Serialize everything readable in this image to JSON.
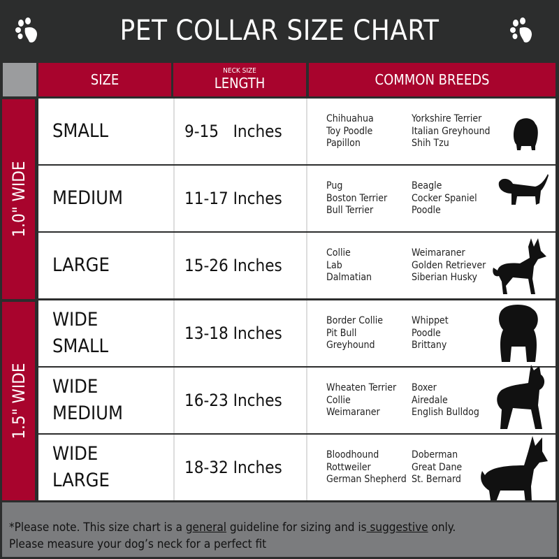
{
  "title": "PET COLLAR SIZE CHART",
  "headers": {
    "size": "SIZE",
    "neck_small": "NECK SIZE",
    "length": "LENGTH",
    "breeds": "COMMON BREEDS"
  },
  "groups": [
    "1.0\" WIDE",
    "1.5\" WIDE"
  ],
  "rows": [
    {
      "size": "SMALL",
      "length": "9-15   Inches",
      "breeds_a": [
        "Chihuahua",
        "Toy Poodle",
        "Papillon"
      ],
      "breeds_b": [
        "Yorkshire Terrier",
        "Italian Greyhound",
        "Shih Tzu"
      ],
      "icon": "small-dog-icon"
    },
    {
      "size": "MEDIUM",
      "length": "11-17 Inches",
      "breeds_a": [
        "Pug",
        "Boston Terrier",
        "Bull Terrier"
      ],
      "breeds_b": [
        "Beagle",
        "Cocker Spaniel",
        "Poodle"
      ],
      "icon": "dachshund-icon"
    },
    {
      "size": "LARGE",
      "length": "15-26 Inches",
      "breeds_a": [
        "Collie",
        "Lab",
        "Dalmatian"
      ],
      "breeds_b": [
        "Weimaraner",
        "Golden Retriever",
        "Siberian Husky"
      ],
      "icon": "shepherd-dog-icon"
    },
    {
      "size": "WIDE SMALL",
      "length": "13-18 Inches",
      "breeds_a": [
        "Border Collie",
        "Pit Bull",
        "Greyhound"
      ],
      "breeds_b": [
        "Whippet",
        "Poodle",
        "Brittany"
      ],
      "icon": "bulldog-icon"
    },
    {
      "size": "WIDE MEDIUM",
      "length": "16-23 Inches",
      "breeds_a": [
        "Wheaten Terrier",
        "Collie",
        "Weimaraner"
      ],
      "breeds_b": [
        "Boxer",
        "Airedale",
        "English Bulldog"
      ],
      "icon": "pitbull-icon"
    },
    {
      "size": "WIDE LARGE",
      "length": "18-32 Inches",
      "breeds_a": [
        "Bloodhound",
        "Rottweiler",
        "German Shepherd"
      ],
      "breeds_b": [
        "Doberman",
        "Great Dane",
        "St. Bernard"
      ],
      "icon": "doberman-icon"
    }
  ],
  "footer": {
    "p1": "*Please note. This size chart is a ",
    "u1": "general",
    "p2": " guideline for sizing and is",
    "u2": " suggestive",
    "p3": " only.",
    "line2": "Please measure your dog’s neck for a perfect fit"
  },
  "colors": {
    "header_bg": "#2c2d2d",
    "accent_red": "#a8042d",
    "footer_gray": "#7b7c7e"
  }
}
